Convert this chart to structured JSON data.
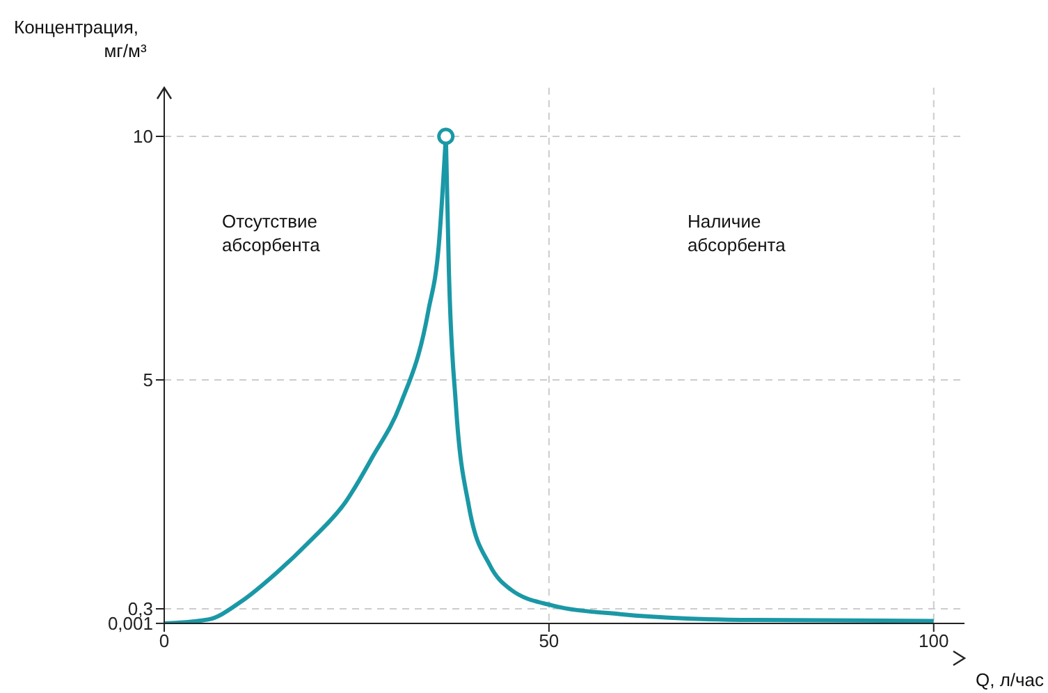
{
  "chart_data": {
    "type": "line",
    "ylabel": "Концентрация,\nмг/м³",
    "xlabel": "Q, л/час",
    "xlim": [
      0,
      104
    ],
    "xticks": [
      0,
      50,
      100
    ],
    "ylim": [
      0,
      11
    ],
    "yticks": [
      {
        "value": 0.001,
        "label": "0,001"
      },
      {
        "value": 0.3,
        "label": "0,3"
      },
      5,
      10
    ],
    "grid": true,
    "line_style": "solid",
    "marker": "none",
    "annotations": [
      "Отсутствие\nабсорбента",
      "Наличие\nабсорбента"
    ],
    "series": [
      {
        "color": "#1a98a6",
        "x": [
          0,
          5.7,
          10,
          14.6,
          19,
          23.6,
          27,
          30.7,
          34.3,
          35.7,
          36.6
        ],
        "values": [
          0,
          0.08,
          0.45,
          1.04,
          1.7,
          2.5,
          3.4,
          4.5,
          6.4,
          7.8,
          10
        ]
      },
      {
        "color": "#1a98a6",
        "x": [
          36.6,
          37,
          37.9,
          39.6,
          42.3,
          45,
          50.4,
          59.3,
          68,
          77,
          100
        ],
        "values": [
          10,
          7.2,
          4.5,
          2.4,
          1.2,
          0.7,
          0.37,
          0.19,
          0.1,
          0.07,
          0.05
        ]
      },
      {
        "type": "scatter",
        "color": "#1a98a6",
        "marker": "circle",
        "x": [
          36.6
        ],
        "values": [
          10
        ]
      }
    ]
  }
}
